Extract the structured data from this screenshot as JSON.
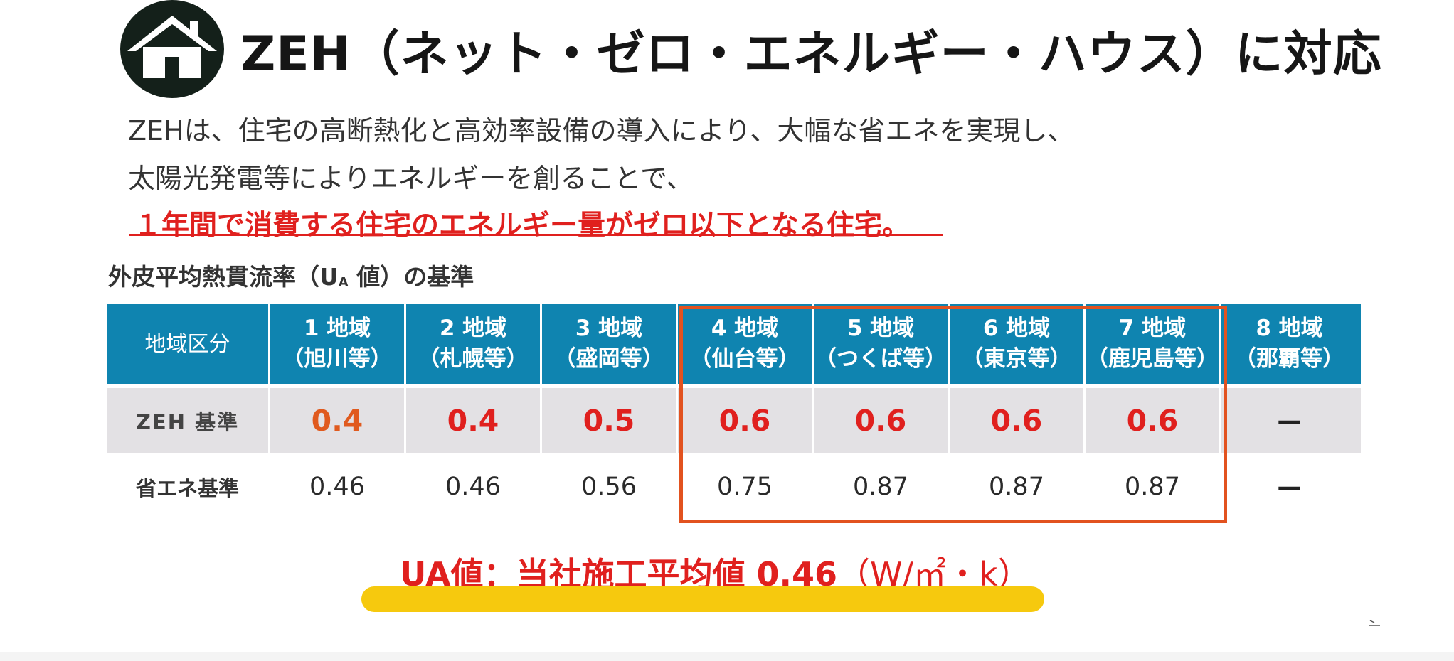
{
  "title": "ZEH（ネット・ゼロ・エネルギー・ハウス）に対応",
  "intro": {
    "line1": "ZEHは、住宅の高断熱化と高効率設備の導入により、大幅な省エネを実現し、",
    "line2": "太陽光発電等によりエネルギーを創ることで、",
    "highlight": "１年間で消費する住宅のエネルギー量がゼロ以下となる住宅。"
  },
  "table": {
    "caption_prefix": "外皮平均熱貫流率（U",
    "caption_sub": "A",
    "caption_suffix": " 値）の基準",
    "header_label": "地域区分",
    "regions": [
      {
        "name": "1 地域",
        "city": "（旭川等）"
      },
      {
        "name": "2 地域",
        "city": "（札幌等）"
      },
      {
        "name": "3 地域",
        "city": "（盛岡等）"
      },
      {
        "name": "4 地域",
        "city": "（仙台等）"
      },
      {
        "name": "5 地域",
        "city": "（つくば等）"
      },
      {
        "name": "6 地域",
        "city": "（東京等）"
      },
      {
        "name": "7 地域",
        "city": "（鹿児島等）"
      },
      {
        "name": "8 地域",
        "city": "（那覇等）"
      }
    ],
    "zeh_label": "ZEH 基準",
    "zeh_values": [
      "0.4",
      "0.4",
      "0.5",
      "0.6",
      "0.6",
      "0.6",
      "0.6",
      "—"
    ],
    "shoene_label": "省エネ基準",
    "shoene_values": [
      "0.46",
      "0.46",
      "0.56",
      "0.75",
      "0.87",
      "0.87",
      "0.87",
      "—"
    ]
  },
  "ua_value": {
    "label": "UA値：当社施工平均値 0.46",
    "unit": "（W/㎡・k）"
  },
  "colors": {
    "header_blue": "#0f84b0",
    "accent_red": "#e0201e",
    "highlight_box": "#e2521f",
    "yellow_bar": "#f6c90e",
    "badge_dark": "#14201a"
  }
}
